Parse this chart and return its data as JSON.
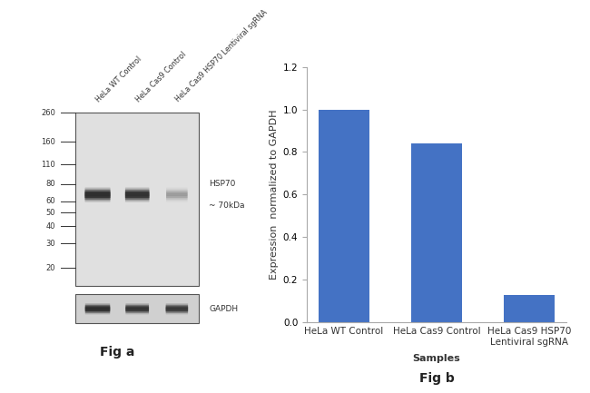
{
  "fig_a_label": "Fig a",
  "fig_b_label": "Fig b",
  "mw_markers": [
    260,
    160,
    110,
    80,
    60,
    50,
    40,
    30,
    20
  ],
  "band_label_line1": "HSP70",
  "band_label_line2": "~ 70kDa",
  "gapdh_label": "GAPDH",
  "sample_labels_wb": [
    "HeLa WT Control",
    "HeLa Cas9 Control",
    "HeLa Cas9 HSP70 Lentiviral sgRNA"
  ],
  "bar_categories": [
    "HeLa WT Control",
    "HeLa Cas9 Control",
    "HeLa Cas9 HSP70\nLentiviral sgRNA"
  ],
  "bar_values": [
    1.0,
    0.84,
    0.13
  ],
  "bar_color": "#4472C4",
  "ylabel": "Expression  normalized to GAPDH",
  "xlabel": "Samples",
  "ylim": [
    0,
    1.2
  ],
  "yticks": [
    0,
    0.2,
    0.4,
    0.6,
    0.8,
    1.0,
    1.2
  ],
  "background_color": "#ffffff",
  "fig_label_fontsize": 10,
  "axis_label_fontsize": 8,
  "tick_fontsize": 7.5
}
